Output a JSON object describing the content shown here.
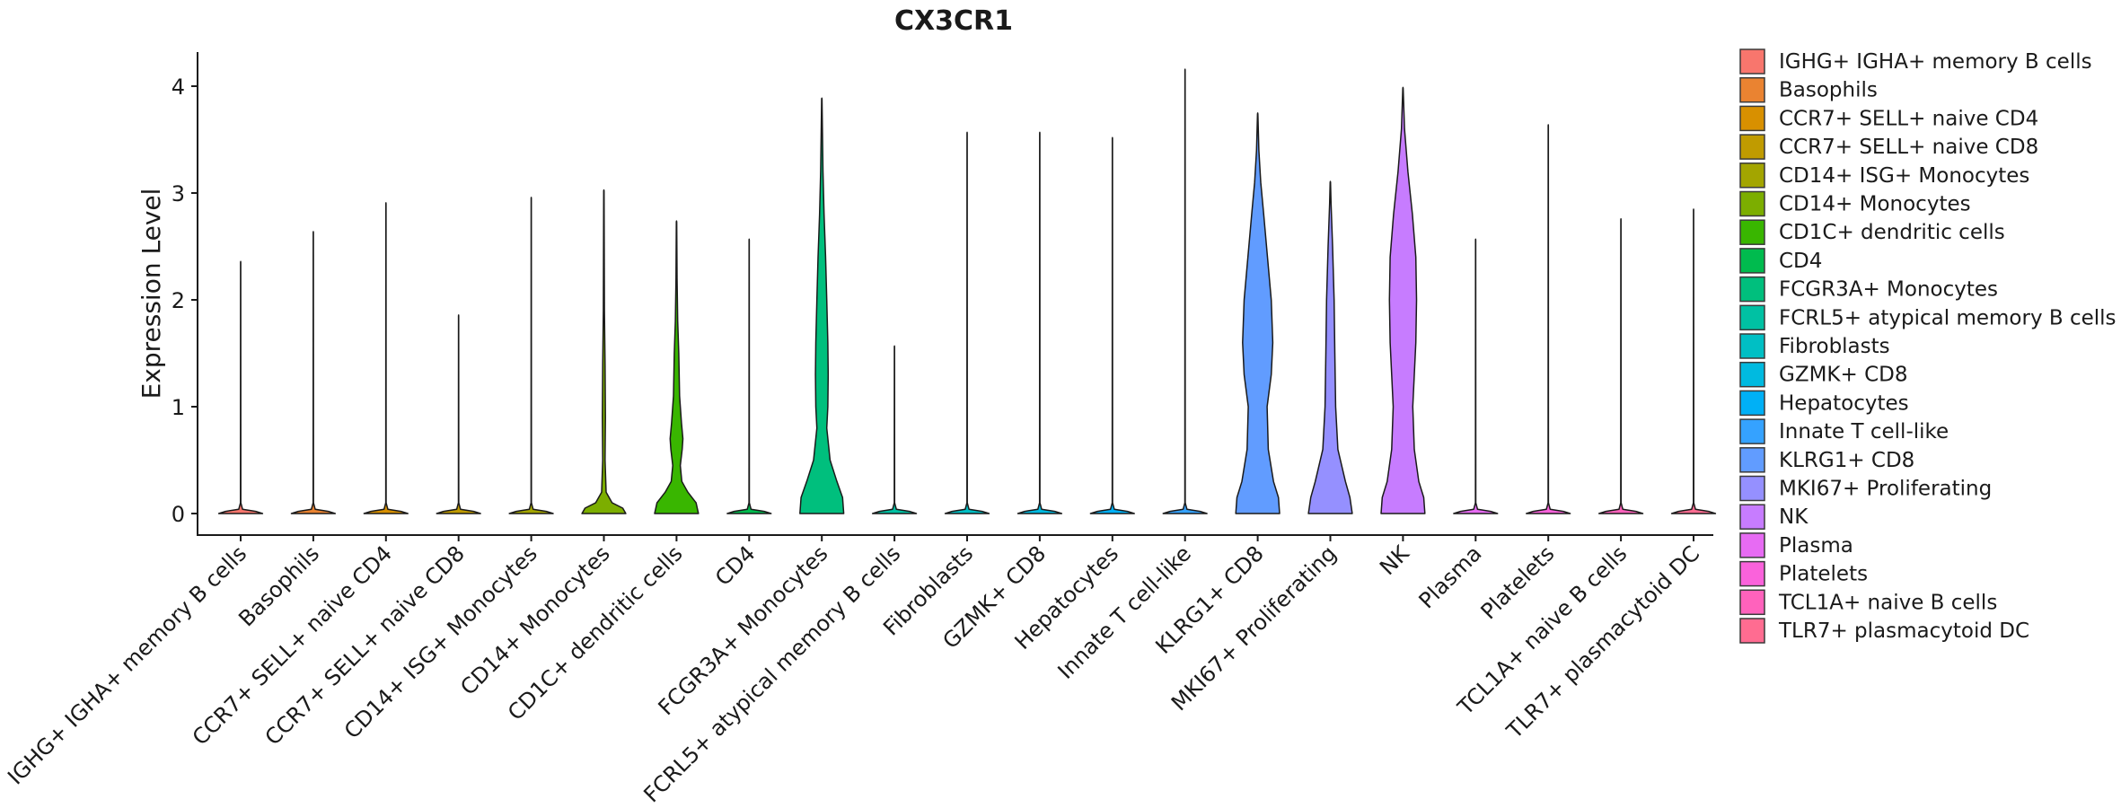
{
  "chart_data": {
    "type": "violin",
    "title": "CX3CR1",
    "xlabel": "",
    "ylabel": "Expression Level",
    "ylim": [
      -0.2,
      4.35
    ],
    "yticks": [
      0,
      1,
      2,
      3,
      4
    ],
    "legend_position": "right",
    "categories": [
      "IGHG+ IGHA+ memory B cells",
      "Basophils",
      "CCR7+ SELL+ naive CD4",
      "CCR7+ SELL+ naive CD8",
      "CD14+ ISG+ Monocytes",
      "CD14+ Monocytes",
      "CD1C+ dendritic cells",
      "CD4",
      "FCGR3A+ Monocytes",
      "FCRL5+ atypical memory B cells",
      "Fibroblasts",
      "GZMK+ CD8",
      "Hepatocytes",
      "Innate T cell-like",
      "KLRG1+ CD8",
      "MKI67+ Proliferating",
      "NK",
      "Plasma",
      "Platelets",
      "TCL1A+ naive B cells",
      "TLR7+ plasmacytoid DC"
    ],
    "legend_labels": [
      " IGHG+ IGHA+ memory B cells",
      "Basophils",
      "CCR7+ SELL+ naive CD4",
      "CCR7+ SELL+ naive CD8",
      "CD14+ ISG+ Monocytes",
      "CD14+ Monocytes",
      "CD1C+ dendritic cells",
      "CD4",
      "FCGR3A+ Monocytes",
      "FCRL5+ atypical memory B cells",
      "Fibroblasts",
      "GZMK+ CD8",
      "Hepatocytes",
      "Innate T cell-like",
      "KLRG1+ CD8",
      "MKI67+ Proliferating",
      "NK",
      "Plasma",
      "Platelets",
      "TCL1A+ naive B cells",
      "TLR7+ plasmacytoid DC"
    ],
    "colors": [
      "#F8766D",
      "#EA8331",
      "#D89000",
      "#C09B00",
      "#A3A500",
      "#7CAE00",
      "#39B600",
      "#00BB4E",
      "#00BF7D",
      "#00C1A3",
      "#00BFC4",
      "#00BAE0",
      "#00B0F6",
      "#35A2FF",
      "#619CFF",
      "#9590FF",
      "#C77CFF",
      "#E76BF3",
      "#FA62DB",
      "#FF62BC",
      "#FF6C91"
    ],
    "max_expression": [
      2.35,
      2.63,
      2.9,
      1.85,
      2.95,
      3.02,
      2.73,
      2.56,
      3.88,
      1.56,
      3.56,
      3.56,
      3.51,
      4.15,
      3.74,
      3.1,
      3.98,
      2.56,
      3.63,
      2.75,
      2.84
    ],
    "density_profiles": [
      {
        "category": "CD14+ Monocytes",
        "y": [
          0,
          0.05,
          0.1,
          0.2,
          0.5,
          0.9,
          1.4,
          1.9,
          3.02
        ],
        "width": [
          0.58,
          0.5,
          0.22,
          0.06,
          0.03,
          0.04,
          0.03,
          0.015,
          0.005
        ]
      },
      {
        "category": "CD1C+ dendritic cells",
        "y": [
          0,
          0.1,
          0.2,
          0.3,
          0.45,
          0.6,
          0.7,
          0.85,
          1.1,
          1.5,
          1.8,
          2.2,
          2.73
        ],
        "width": [
          0.58,
          0.52,
          0.3,
          0.14,
          0.1,
          0.15,
          0.17,
          0.13,
          0.08,
          0.06,
          0.03,
          0.015,
          0.005
        ]
      },
      {
        "category": "FCGR3A+ Monocytes",
        "y": [
          0,
          0.15,
          0.3,
          0.5,
          0.8,
          1.0,
          1.3,
          1.6,
          2.0,
          2.4,
          2.8,
          3.2,
          3.88
        ],
        "width": [
          0.58,
          0.55,
          0.4,
          0.22,
          0.13,
          0.16,
          0.17,
          0.16,
          0.13,
          0.1,
          0.06,
          0.03,
          0.005
        ]
      },
      {
        "category": "KLRG1+ CD8",
        "y": [
          0,
          0.15,
          0.3,
          0.6,
          1.0,
          1.3,
          1.6,
          2.0,
          2.4,
          2.8,
          3.1,
          3.4,
          3.74
        ],
        "width": [
          0.58,
          0.55,
          0.42,
          0.28,
          0.25,
          0.36,
          0.4,
          0.36,
          0.26,
          0.16,
          0.08,
          0.03,
          0.005
        ]
      },
      {
        "category": "MKI67+ Proliferating",
        "y": [
          0,
          0.15,
          0.3,
          0.6,
          1.0,
          1.5,
          2.0,
          2.5,
          2.9,
          3.1
        ],
        "width": [
          0.58,
          0.52,
          0.4,
          0.2,
          0.14,
          0.12,
          0.1,
          0.06,
          0.02,
          0.005
        ]
      },
      {
        "category": "NK",
        "y": [
          0,
          0.15,
          0.3,
          0.6,
          1.0,
          1.3,
          1.6,
          2.0,
          2.4,
          2.8,
          3.2,
          3.6,
          3.98
        ],
        "width": [
          0.58,
          0.55,
          0.42,
          0.3,
          0.26,
          0.3,
          0.34,
          0.36,
          0.34,
          0.25,
          0.13,
          0.04,
          0.005
        ]
      }
    ]
  }
}
